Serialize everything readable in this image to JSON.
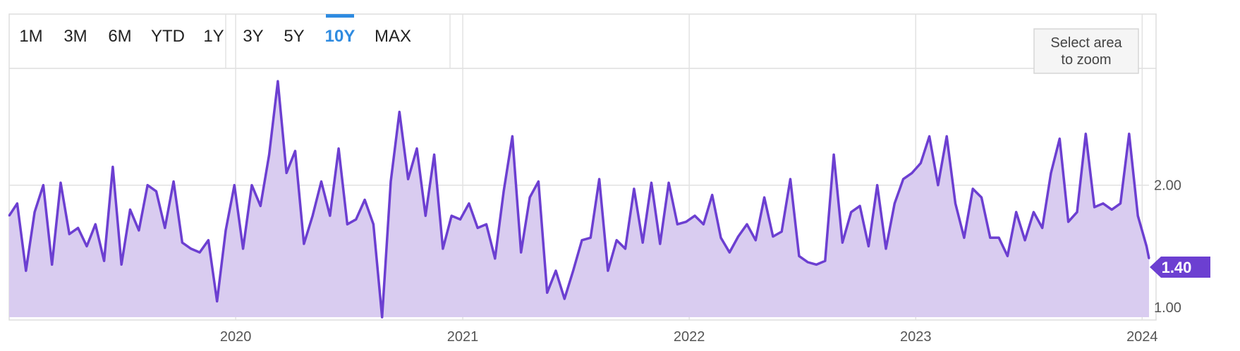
{
  "range_selector": {
    "buttons": [
      "1M",
      "3M",
      "6M",
      "YTD",
      "1Y",
      "3Y",
      "5Y",
      "10Y",
      "MAX"
    ],
    "active": "10Y"
  },
  "zoom_hint": {
    "line1": "Select area",
    "line2": "to zoom"
  },
  "colors": {
    "line": "#6c3fd1",
    "fill": "#d9ccf0",
    "accent": "#2f8be0",
    "badge": "#6c3fd1"
  },
  "chart_data": {
    "type": "area",
    "title": "",
    "xlabel": "",
    "ylabel": "",
    "x_ticks": [
      "2020",
      "2021",
      "2022",
      "2023",
      "2024"
    ],
    "y_ticks": [
      "2.00",
      "1.00"
    ],
    "ylim": [
      0.92,
      2.95
    ],
    "xlim": [
      "2019-01-01",
      "2024-01-12"
    ],
    "grid": true,
    "last_value_label": "1.40",
    "series": [
      {
        "values": [
          {
            "x": "2019-01-01",
            "y": 1.75
          },
          {
            "x": "2019-01-14",
            "y": 1.85
          },
          {
            "x": "2019-01-28",
            "y": 1.3
          },
          {
            "x": "2019-02-11",
            "y": 1.78
          },
          {
            "x": "2019-02-25",
            "y": 2.0
          },
          {
            "x": "2019-03-11",
            "y": 1.35
          },
          {
            "x": "2019-03-25",
            "y": 2.02
          },
          {
            "x": "2019-04-08",
            "y": 1.6
          },
          {
            "x": "2019-04-22",
            "y": 1.65
          },
          {
            "x": "2019-05-06",
            "y": 1.5
          },
          {
            "x": "2019-05-20",
            "y": 1.68
          },
          {
            "x": "2019-06-03",
            "y": 1.38
          },
          {
            "x": "2019-06-17",
            "y": 2.15
          },
          {
            "x": "2019-07-01",
            "y": 1.35
          },
          {
            "x": "2019-07-15",
            "y": 1.8
          },
          {
            "x": "2019-07-29",
            "y": 1.63
          },
          {
            "x": "2019-08-12",
            "y": 2.0
          },
          {
            "x": "2019-08-26",
            "y": 1.95
          },
          {
            "x": "2019-09-09",
            "y": 1.65
          },
          {
            "x": "2019-09-23",
            "y": 2.03
          },
          {
            "x": "2019-10-07",
            "y": 1.53
          },
          {
            "x": "2019-10-21",
            "y": 1.48
          },
          {
            "x": "2019-11-04",
            "y": 1.45
          },
          {
            "x": "2019-11-18",
            "y": 1.55
          },
          {
            "x": "2019-12-02",
            "y": 1.05
          },
          {
            "x": "2019-12-16",
            "y": 1.63
          },
          {
            "x": "2019-12-30",
            "y": 2.0
          },
          {
            "x": "2020-01-13",
            "y": 1.48
          },
          {
            "x": "2020-01-27",
            "y": 2.0
          },
          {
            "x": "2020-02-10",
            "y": 1.83
          },
          {
            "x": "2020-02-24",
            "y": 2.25
          },
          {
            "x": "2020-03-09",
            "y": 2.85
          },
          {
            "x": "2020-03-23",
            "y": 2.1
          },
          {
            "x": "2020-04-06",
            "y": 2.28
          },
          {
            "x": "2020-04-20",
            "y": 1.52
          },
          {
            "x": "2020-05-04",
            "y": 1.75
          },
          {
            "x": "2020-05-18",
            "y": 2.03
          },
          {
            "x": "2020-06-01",
            "y": 1.75
          },
          {
            "x": "2020-06-15",
            "y": 2.3
          },
          {
            "x": "2020-06-29",
            "y": 1.68
          },
          {
            "x": "2020-07-13",
            "y": 1.72
          },
          {
            "x": "2020-07-27",
            "y": 1.88
          },
          {
            "x": "2020-08-10",
            "y": 1.68
          },
          {
            "x": "2020-08-24",
            "y": 0.92
          },
          {
            "x": "2020-09-07",
            "y": 2.03
          },
          {
            "x": "2020-09-21",
            "y": 2.6
          },
          {
            "x": "2020-10-05",
            "y": 2.05
          },
          {
            "x": "2020-10-19",
            "y": 2.3
          },
          {
            "x": "2020-11-02",
            "y": 1.75
          },
          {
            "x": "2020-11-16",
            "y": 2.25
          },
          {
            "x": "2020-11-30",
            "y": 1.48
          },
          {
            "x": "2020-12-14",
            "y": 1.75
          },
          {
            "x": "2020-12-28",
            "y": 1.72
          },
          {
            "x": "2021-01-11",
            "y": 1.85
          },
          {
            "x": "2021-01-25",
            "y": 1.65
          },
          {
            "x": "2021-02-08",
            "y": 1.68
          },
          {
            "x": "2021-02-22",
            "y": 1.4
          },
          {
            "x": "2021-03-08",
            "y": 1.95
          },
          {
            "x": "2021-03-22",
            "y": 2.4
          },
          {
            "x": "2021-04-05",
            "y": 1.45
          },
          {
            "x": "2021-04-19",
            "y": 1.9
          },
          {
            "x": "2021-05-03",
            "y": 2.03
          },
          {
            "x": "2021-05-17",
            "y": 1.12
          },
          {
            "x": "2021-05-31",
            "y": 1.3
          },
          {
            "x": "2021-06-14",
            "y": 1.07
          },
          {
            "x": "2021-06-28",
            "y": 1.3
          },
          {
            "x": "2021-07-12",
            "y": 1.55
          },
          {
            "x": "2021-07-26",
            "y": 1.57
          },
          {
            "x": "2021-08-09",
            "y": 2.05
          },
          {
            "x": "2021-08-23",
            "y": 1.3
          },
          {
            "x": "2021-09-06",
            "y": 1.55
          },
          {
            "x": "2021-09-20",
            "y": 1.48
          },
          {
            "x": "2021-10-04",
            "y": 1.97
          },
          {
            "x": "2021-10-18",
            "y": 1.53
          },
          {
            "x": "2021-11-01",
            "y": 2.02
          },
          {
            "x": "2021-11-15",
            "y": 1.52
          },
          {
            "x": "2021-11-29",
            "y": 2.02
          },
          {
            "x": "2021-12-13",
            "y": 1.68
          },
          {
            "x": "2021-12-27",
            "y": 1.7
          },
          {
            "x": "2022-01-10",
            "y": 1.75
          },
          {
            "x": "2022-01-24",
            "y": 1.68
          },
          {
            "x": "2022-02-07",
            "y": 1.92
          },
          {
            "x": "2022-02-21",
            "y": 1.57
          },
          {
            "x": "2022-03-07",
            "y": 1.45
          },
          {
            "x": "2022-03-21",
            "y": 1.58
          },
          {
            "x": "2022-04-04",
            "y": 1.68
          },
          {
            "x": "2022-04-18",
            "y": 1.55
          },
          {
            "x": "2022-05-02",
            "y": 1.9
          },
          {
            "x": "2022-05-16",
            "y": 1.58
          },
          {
            "x": "2022-05-30",
            "y": 1.62
          },
          {
            "x": "2022-06-13",
            "y": 2.05
          },
          {
            "x": "2022-06-27",
            "y": 1.42
          },
          {
            "x": "2022-07-11",
            "y": 1.37
          },
          {
            "x": "2022-07-25",
            "y": 1.35
          },
          {
            "x": "2022-08-08",
            "y": 1.38
          },
          {
            "x": "2022-08-22",
            "y": 2.25
          },
          {
            "x": "2022-09-05",
            "y": 1.53
          },
          {
            "x": "2022-09-19",
            "y": 1.78
          },
          {
            "x": "2022-10-03",
            "y": 1.83
          },
          {
            "x": "2022-10-17",
            "y": 1.5
          },
          {
            "x": "2022-10-31",
            "y": 2.0
          },
          {
            "x": "2022-11-14",
            "y": 1.48
          },
          {
            "x": "2022-11-28",
            "y": 1.85
          },
          {
            "x": "2022-12-12",
            "y": 2.05
          },
          {
            "x": "2022-12-26",
            "y": 2.1
          },
          {
            "x": "2023-01-09",
            "y": 2.18
          },
          {
            "x": "2023-01-23",
            "y": 2.4
          },
          {
            "x": "2023-02-06",
            "y": 2.0
          },
          {
            "x": "2023-02-20",
            "y": 2.4
          },
          {
            "x": "2023-03-06",
            "y": 1.85
          },
          {
            "x": "2023-03-20",
            "y": 1.57
          },
          {
            "x": "2023-04-03",
            "y": 1.97
          },
          {
            "x": "2023-04-17",
            "y": 1.9
          },
          {
            "x": "2023-05-01",
            "y": 1.57
          },
          {
            "x": "2023-05-15",
            "y": 1.57
          },
          {
            "x": "2023-05-29",
            "y": 1.42
          },
          {
            "x": "2023-06-12",
            "y": 1.78
          },
          {
            "x": "2023-06-26",
            "y": 1.55
          },
          {
            "x": "2023-07-10",
            "y": 1.78
          },
          {
            "x": "2023-07-24",
            "y": 1.65
          },
          {
            "x": "2023-08-07",
            "y": 2.1
          },
          {
            "x": "2023-08-21",
            "y": 2.38
          },
          {
            "x": "2023-09-04",
            "y": 1.7
          },
          {
            "x": "2023-09-18",
            "y": 1.78
          },
          {
            "x": "2023-10-02",
            "y": 2.42
          },
          {
            "x": "2023-10-16",
            "y": 1.82
          },
          {
            "x": "2023-10-30",
            "y": 1.85
          },
          {
            "x": "2023-11-13",
            "y": 1.8
          },
          {
            "x": "2023-11-27",
            "y": 1.85
          },
          {
            "x": "2023-12-11",
            "y": 2.42
          },
          {
            "x": "2023-12-25",
            "y": 1.75
          },
          {
            "x": "2024-01-08",
            "y": 1.5
          },
          {
            "x": "2024-01-12",
            "y": 1.4
          }
        ]
      }
    ]
  }
}
